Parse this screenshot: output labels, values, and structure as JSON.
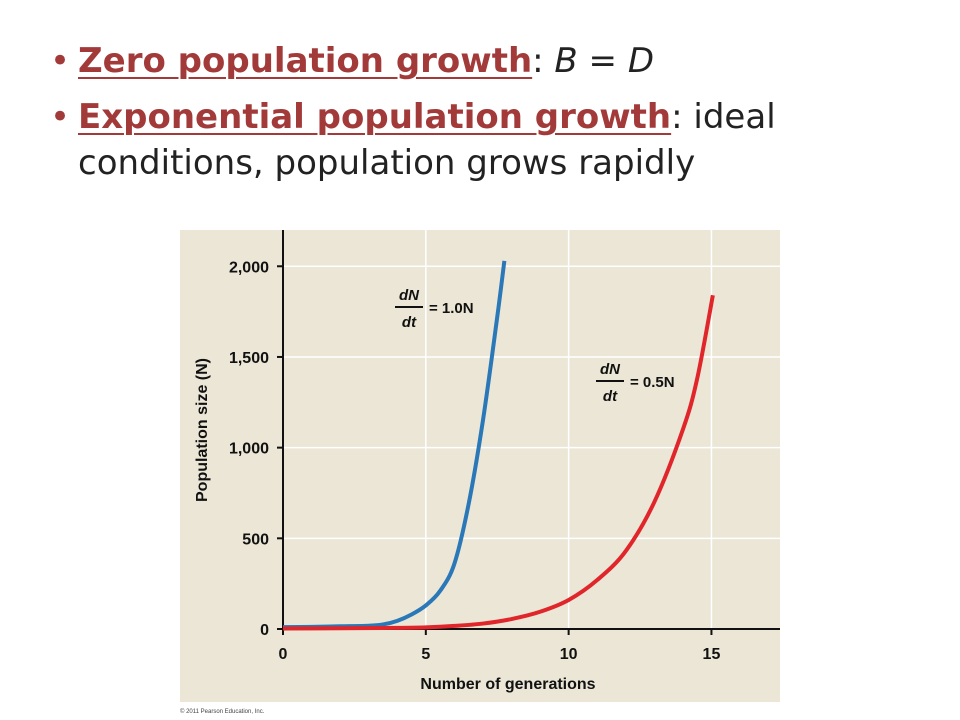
{
  "bullets": [
    {
      "term": "Zero population growth",
      "sep": ": ",
      "rest": "B = D"
    },
    {
      "term": "Exponential population growth",
      "sep": ": ",
      "rest": "ideal conditions, population grows rapidly"
    }
  ],
  "copyright": "© 2011 Pearson Education, Inc.",
  "colors": {
    "accent": "#a33a3a",
    "panel": "#ebe6d6",
    "blue": "#2a78b8",
    "red": "#e0262b"
  },
  "chart_data": {
    "type": "line",
    "title": "",
    "xlabel": "Number of generations",
    "ylabel": "Population size (N)",
    "xlim": [
      0,
      17.4
    ],
    "ylim": [
      0,
      2200
    ],
    "x_ticks": [
      0,
      5,
      10,
      15
    ],
    "y_ticks": [
      0,
      500,
      1000,
      1500,
      2000
    ],
    "y_tick_labels": [
      "0",
      "500",
      "1,000",
      "1,500",
      "2,000"
    ],
    "grid": true,
    "series": [
      {
        "name": "dN/dt = 1.0N",
        "color": "#2a78b8",
        "points": [
          [
            0,
            10
          ],
          [
            1,
            12
          ],
          [
            2,
            15
          ],
          [
            3,
            18
          ],
          [
            3.5,
            25
          ],
          [
            4,
            45
          ],
          [
            4.5,
            80
          ],
          [
            5,
            130
          ],
          [
            5.5,
            210
          ],
          [
            6,
            360
          ],
          [
            6.5,
            690
          ],
          [
            7,
            1150
          ],
          [
            7.5,
            1720
          ],
          [
            7.75,
            2030
          ]
        ],
        "label": {
          "numerator": "dN",
          "denominator": "dt",
          "equation": "= 1.0N"
        }
      },
      {
        "name": "dN/dt = 0.5N",
        "color": "#e0262b",
        "points": [
          [
            0,
            3
          ],
          [
            2,
            4
          ],
          [
            4,
            6
          ],
          [
            5,
            9
          ],
          [
            6,
            17
          ],
          [
            7,
            30
          ],
          [
            8,
            55
          ],
          [
            9,
            95
          ],
          [
            10,
            160
          ],
          [
            11,
            270
          ],
          [
            12,
            430
          ],
          [
            13,
            700
          ],
          [
            14,
            1100
          ],
          [
            14.5,
            1380
          ],
          [
            15.05,
            1840
          ]
        ],
        "label": {
          "numerator": "dN",
          "denominator": "dt",
          "equation": "= 0.5N"
        }
      }
    ]
  }
}
